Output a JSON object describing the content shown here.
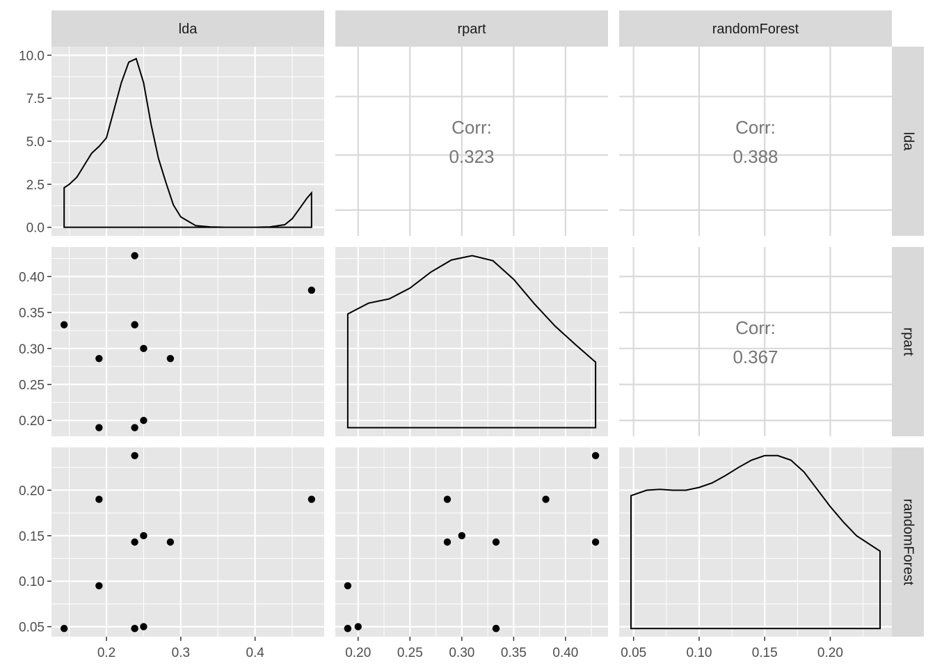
{
  "chart_data": {
    "type": "scatter",
    "kind": "pairs-plot",
    "variables": [
      "lda",
      "rpart",
      "randomForest"
    ],
    "points": {
      "lda": [
        0.143,
        0.19,
        0.19,
        0.238,
        0.238,
        0.238,
        0.25,
        0.25,
        0.286,
        0.476,
        0.238
      ],
      "rpart": [
        0.333,
        0.286,
        0.19,
        0.333,
        0.19,
        0.429,
        0.3,
        0.2,
        0.286,
        0.381,
        0.333
      ],
      "randomForest": [
        0.048,
        0.19,
        0.095,
        0.143,
        0.048,
        0.238,
        0.15,
        0.05,
        0.143,
        0.19,
        0.048
      ]
    },
    "extra_points": {
      "rpart_vs_randomForest": [
        {
          "x": 0.19,
          "y": 0.048
        },
        {
          "x": 0.429,
          "y": 0.143
        }
      ]
    },
    "densities": {
      "lda": {
        "x": [
          0.143,
          0.15,
          0.16,
          0.17,
          0.18,
          0.19,
          0.2,
          0.21,
          0.22,
          0.23,
          0.24,
          0.25,
          0.26,
          0.27,
          0.28,
          0.29,
          0.3,
          0.32,
          0.34,
          0.36,
          0.38,
          0.4,
          0.42,
          0.44,
          0.45,
          0.46,
          0.47,
          0.476
        ],
        "y": [
          2.3,
          2.5,
          2.9,
          3.6,
          4.3,
          4.7,
          5.2,
          6.8,
          8.4,
          9.6,
          9.8,
          8.4,
          6.0,
          4.0,
          2.6,
          1.3,
          0.6,
          0.1,
          0.02,
          0.0,
          0.0,
          0.0,
          0.02,
          0.15,
          0.5,
          1.1,
          1.7,
          2.0
        ]
      },
      "rpart": {
        "x": [
          0.19,
          0.21,
          0.23,
          0.25,
          0.27,
          0.29,
          0.31,
          0.33,
          0.35,
          0.37,
          0.39,
          0.41,
          0.429
        ],
        "y": [
          0.348,
          0.363,
          0.369,
          0.384,
          0.406,
          0.423,
          0.429,
          0.422,
          0.396,
          0.362,
          0.331,
          0.305,
          0.281
        ]
      },
      "randomForest": {
        "x": [
          0.048,
          0.06,
          0.07,
          0.08,
          0.09,
          0.1,
          0.11,
          0.12,
          0.13,
          0.14,
          0.15,
          0.16,
          0.17,
          0.18,
          0.19,
          0.2,
          0.21,
          0.22,
          0.238
        ],
        "y": [
          0.194,
          0.2,
          0.201,
          0.2,
          0.2,
          0.203,
          0.208,
          0.216,
          0.225,
          0.233,
          0.238,
          0.238,
          0.233,
          0.22,
          0.201,
          0.182,
          0.165,
          0.15,
          0.133
        ]
      }
    },
    "correlations": [
      {
        "row": "lda",
        "col": "rpart",
        "label": "Corr:",
        "value": "0.323"
      },
      {
        "row": "lda",
        "col": "randomForest",
        "label": "Corr:",
        "value": "0.388"
      },
      {
        "row": "rpart",
        "col": "randomForest",
        "label": "Corr:",
        "value": "0.367"
      }
    ],
    "axes": {
      "lda": {
        "lim": [
          0.126,
          0.493
        ],
        "ticks": [
          0.2,
          0.3,
          0.4
        ],
        "tick_labels": [
          "0.2",
          "0.3",
          "0.4"
        ]
      },
      "rpart": {
        "lim": [
          0.178,
          0.441
        ],
        "ticks": [
          0.2,
          0.25,
          0.3,
          0.35,
          0.4
        ],
        "tick_labels": [
          "0.20",
          "0.25",
          "0.30",
          "0.35",
          "0.40"
        ]
      },
      "randomForest": {
        "lim": [
          0.039,
          0.247
        ],
        "ticks": [
          0.05,
          0.1,
          0.15,
          0.2
        ],
        "tick_labels": [
          "0.05",
          "0.10",
          "0.15",
          "0.20"
        ]
      },
      "lda_density_y": {
        "lim": [
          -0.5,
          10.5
        ],
        "ticks": [
          0,
          2.5,
          5,
          7.5,
          10
        ],
        "tick_labels": [
          "0.0",
          "2.5",
          "5.0",
          "7.5",
          "10.0"
        ]
      }
    },
    "grid": true,
    "colors": {
      "panel_background": "#e6e6e6",
      "grid_line": "#ffffff",
      "strip_background": "#d9d9d9",
      "point": "#000000",
      "corr_text": "#767676",
      "corr_grid": "#d9d9d9"
    }
  }
}
